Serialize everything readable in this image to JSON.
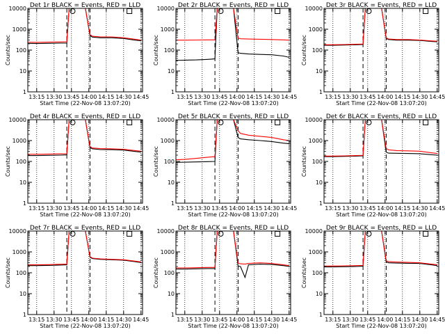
{
  "figure": {
    "background": "#ffffff",
    "ink": "#000000",
    "accent": "#ff0000"
  },
  "chart_data": [
    {
      "type": "line",
      "title": "Det 1r BLACK = Events, RED = LLD",
      "xlabel": "Start Time (22-Nov-08 13:07:20)",
      "ylabel": "Counts/sec",
      "x_ticks": [
        "13:15",
        "13:30",
        "13:45",
        "14:00",
        "14:15",
        "14:30",
        "14:45"
      ],
      "y_ticks": [
        "1",
        "10",
        "100",
        "1000",
        "10000"
      ],
      "y_scale": "log",
      "ylim": [
        1,
        10000
      ],
      "x": [
        "13:07",
        "13:15",
        "13:25",
        "13:35",
        "13:41",
        "13:43",
        "13:50",
        "13:57",
        "14:01",
        "14:03",
        "14:10",
        "14:20",
        "14:30",
        "14:40",
        "14:45"
      ],
      "series": [
        {
          "name": "BLACK = Events",
          "color": "#000000",
          "values": [
            210,
            205,
            210,
            215,
            215,
            10000,
            10000,
            10000,
            500,
            420,
            390,
            390,
            360,
            300,
            280
          ]
        },
        {
          "name": "RED = LLD",
          "color": "#ff0000",
          "values": [
            240,
            235,
            240,
            245,
            250,
            10000,
            10000,
            10000,
            560,
            460,
            430,
            430,
            390,
            330,
            300
          ]
        }
      ],
      "markers": [
        {
          "symbol": "circle",
          "x": "13:46"
        },
        {
          "symbol": "square",
          "x": "14:35"
        }
      ],
      "dashed_lines": [
        "13:41",
        "14:01"
      ],
      "grid": "dotted vertical"
    },
    {
      "type": "line",
      "title": "Det 2r BLACK = Events, RED = LLD",
      "xlabel": "Start Time (22-Nov-08 13:07:20)",
      "ylabel": "Counts/sec",
      "x_ticks": [
        "13:15",
        "13:30",
        "13:45",
        "14:00",
        "14:15",
        "14:30",
        "14:45"
      ],
      "y_ticks": [
        "1",
        "10",
        "100",
        "1000",
        "10000"
      ],
      "y_scale": "log",
      "ylim": [
        1,
        10000
      ],
      "x": [
        "13:07",
        "13:15",
        "13:25",
        "13:35",
        "13:41",
        "13:43",
        "13:50",
        "13:57",
        "14:01",
        "14:03",
        "14:10",
        "14:20",
        "14:30",
        "14:40",
        "14:45"
      ],
      "series": [
        {
          "name": "BLACK = Events",
          "color": "#000000",
          "values": [
            32,
            33,
            34,
            36,
            38,
            10000,
            10000,
            10000,
            75,
            70,
            65,
            62,
            60,
            52,
            45
          ]
        },
        {
          "name": "RED = LLD",
          "color": "#ff0000",
          "values": [
            300,
            300,
            305,
            310,
            310,
            10000,
            10000,
            10000,
            380,
            350,
            340,
            330,
            320,
            310,
            300
          ]
        }
      ],
      "markers": [
        {
          "symbol": "circle",
          "x": "13:46"
        },
        {
          "symbol": "square",
          "x": "14:35"
        }
      ],
      "dashed_lines": [
        "13:41",
        "14:01"
      ],
      "grid": "dotted vertical"
    },
    {
      "type": "line",
      "title": "Det 3r BLACK = Events, RED = LLD",
      "xlabel": "Start Time (22-Nov-08 13:07:20)",
      "ylabel": "Counts/sec",
      "x_ticks": [
        "13:15",
        "13:30",
        "13:45",
        "14:00",
        "14:15",
        "14:30",
        "14:45"
      ],
      "y_ticks": [
        "1",
        "10",
        "100",
        "1000",
        "10000"
      ],
      "y_scale": "log",
      "ylim": [
        1,
        10000
      ],
      "x": [
        "13:07",
        "13:15",
        "13:25",
        "13:35",
        "13:41",
        "13:43",
        "13:50",
        "13:57",
        "14:01",
        "14:03",
        "14:10",
        "14:20",
        "14:30",
        "14:40",
        "14:45"
      ],
      "series": [
        {
          "name": "BLACK = Events",
          "color": "#000000",
          "values": [
            170,
            170,
            175,
            180,
            185,
            10000,
            10000,
            10000,
            360,
            320,
            300,
            300,
            290,
            260,
            250
          ]
        },
        {
          "name": "RED = LLD",
          "color": "#ff0000",
          "values": [
            180,
            180,
            185,
            190,
            195,
            10000,
            10000,
            10000,
            390,
            340,
            320,
            320,
            305,
            275,
            265
          ]
        }
      ],
      "markers": [
        {
          "symbol": "circle",
          "x": "13:46"
        },
        {
          "symbol": "square",
          "x": "14:35"
        }
      ],
      "dashed_lines": [
        "13:41",
        "14:01"
      ],
      "grid": "dotted vertical"
    },
    {
      "type": "line",
      "title": "Det 4r BLACK = Events, RED = LLD",
      "xlabel": "Start Time (22-Nov-08 13:07:20)",
      "ylabel": "Counts/sec",
      "x_ticks": [
        "13:15",
        "13:30",
        "13:45",
        "14:00",
        "14:15",
        "14:30",
        "14:45"
      ],
      "y_ticks": [
        "1",
        "10",
        "100",
        "1000",
        "10000"
      ],
      "y_scale": "log",
      "ylim": [
        1,
        10000
      ],
      "x": [
        "13:07",
        "13:15",
        "13:25",
        "13:35",
        "13:41",
        "13:43",
        "13:50",
        "13:57",
        "14:01",
        "14:03",
        "14:10",
        "14:20",
        "14:30",
        "14:40",
        "14:45"
      ],
      "series": [
        {
          "name": "BLACK = Events",
          "color": "#000000",
          "values": [
            190,
            190,
            195,
            200,
            205,
            10000,
            10000,
            10000,
            460,
            400,
            370,
            365,
            350,
            300,
            280
          ]
        },
        {
          "name": "RED = LLD",
          "color": "#ff0000",
          "values": [
            220,
            220,
            225,
            230,
            235,
            10000,
            10000,
            10000,
            520,
            440,
            410,
            400,
            380,
            330,
            310
          ]
        }
      ],
      "markers": [
        {
          "symbol": "circle",
          "x": "13:46"
        },
        {
          "symbol": "square",
          "x": "14:35"
        }
      ],
      "dashed_lines": [
        "13:41",
        "14:01"
      ],
      "grid": "dotted vertical"
    },
    {
      "type": "line",
      "title": "Det 5r BLACK = Events, RED = LLD",
      "xlabel": "Start Time (22-Nov-08 13:07:20)",
      "ylabel": "Counts/sec",
      "x_ticks": [
        "13:15",
        "13:30",
        "13:45",
        "14:00",
        "14:15",
        "14:30",
        "14:45"
      ],
      "y_ticks": [
        "1",
        "10",
        "100",
        "1000",
        "10000"
      ],
      "y_scale": "log",
      "ylim": [
        1,
        10000
      ],
      "x": [
        "13:07",
        "13:15",
        "13:25",
        "13:35",
        "13:41",
        "13:43",
        "13:50",
        "13:57",
        "14:01",
        "14:03",
        "14:10",
        "14:20",
        "14:30",
        "14:40",
        "14:45"
      ],
      "series": [
        {
          "name": "BLACK = Events",
          "color": "#000000",
          "values": [
            90,
            92,
            95,
            98,
            100,
            10000,
            10000,
            10000,
            1400,
            1200,
            1100,
            1000,
            900,
            750,
            700
          ]
        },
        {
          "name": "RED = LLD",
          "color": "#ff0000",
          "values": [
            120,
            125,
            140,
            160,
            170,
            10000,
            10000,
            10000,
            3000,
            2200,
            1800,
            1600,
            1400,
            1100,
            1000
          ]
        }
      ],
      "markers": [
        {
          "symbol": "circle",
          "x": "13:46"
        },
        {
          "symbol": "square",
          "x": "14:35"
        }
      ],
      "dashed_lines": [
        "13:41",
        "14:01"
      ],
      "grid": "dotted vertical"
    },
    {
      "type": "line",
      "title": "Det 6r BLACK = Events, RED = LLD",
      "xlabel": "Start Time (22-Nov-08 13:07:20)",
      "ylabel": "Counts/sec",
      "x_ticks": [
        "13:15",
        "13:30",
        "13:45",
        "14:00",
        "14:15",
        "14:30",
        "14:45"
      ],
      "y_ticks": [
        "1",
        "10",
        "100",
        "1000",
        "10000"
      ],
      "y_scale": "log",
      "ylim": [
        1,
        10000
      ],
      "x": [
        "13:07",
        "13:15",
        "13:25",
        "13:35",
        "13:41",
        "13:43",
        "13:50",
        "13:57",
        "14:01",
        "14:03",
        "14:10",
        "14:20",
        "14:30",
        "14:40",
        "14:45"
      ],
      "series": [
        {
          "name": "BLACK = Events",
          "color": "#000000",
          "values": [
            170,
            170,
            175,
            180,
            185,
            10000,
            10000,
            10000,
            280,
            250,
            245,
            240,
            235,
            210,
            200
          ]
        },
        {
          "name": "RED = LLD",
          "color": "#ff0000",
          "values": [
            180,
            180,
            185,
            190,
            195,
            10000,
            10000,
            10000,
            420,
            360,
            330,
            320,
            310,
            260,
            240
          ]
        }
      ],
      "markers": [
        {
          "symbol": "circle",
          "x": "13:46"
        },
        {
          "symbol": "square",
          "x": "14:35"
        }
      ],
      "dashed_lines": [
        "13:41",
        "14:01"
      ],
      "grid": "dotted vertical"
    },
    {
      "type": "line",
      "title": "Det 7r BLACK = Events, RED = LLD",
      "xlabel": "Start Time (22-Nov-08 13:07:20)",
      "ylabel": "Counts/sec",
      "x_ticks": [
        "13:15",
        "13:30",
        "13:45",
        "14:00",
        "14:15",
        "14:30",
        "14:45"
      ],
      "y_ticks": [
        "1",
        "10",
        "100",
        "1000",
        "10000"
      ],
      "y_scale": "log",
      "ylim": [
        1,
        10000
      ],
      "x": [
        "13:07",
        "13:15",
        "13:25",
        "13:35",
        "13:41",
        "13:43",
        "13:50",
        "13:57",
        "14:01",
        "14:03",
        "14:10",
        "14:20",
        "14:30",
        "14:40",
        "14:45"
      ],
      "series": [
        {
          "name": "BLACK = Events",
          "color": "#000000",
          "values": [
            220,
            220,
            225,
            235,
            240,
            10000,
            10000,
            10000,
            560,
            480,
            440,
            420,
            400,
            340,
            310
          ]
        },
        {
          "name": "RED = LLD",
          "color": "#ff0000",
          "values": [
            240,
            240,
            245,
            255,
            260,
            10000,
            10000,
            10000,
            600,
            500,
            460,
            440,
            420,
            360,
            330
          ]
        }
      ],
      "markers": [
        {
          "symbol": "circle",
          "x": "13:46"
        },
        {
          "symbol": "square",
          "x": "14:35"
        }
      ],
      "dashed_lines": [
        "13:41",
        "14:01"
      ],
      "grid": "dotted vertical"
    },
    {
      "type": "line",
      "title": "Det 8r BLACK = Events, RED = LLD",
      "xlabel": "Start Time (22-Nov-08 13:07:20)",
      "ylabel": "Counts/sec",
      "x_ticks": [
        "13:15",
        "13:30",
        "13:45",
        "14:00",
        "14:15",
        "14:30",
        "14:45"
      ],
      "y_ticks": [
        "1",
        "10",
        "100",
        "1000",
        "10000"
      ],
      "y_scale": "log",
      "ylim": [
        1,
        10000
      ],
      "x": [
        "13:07",
        "13:15",
        "13:25",
        "13:35",
        "13:41",
        "13:43",
        "13:50",
        "13:57",
        "14:01",
        "14:03",
        "14:07",
        "14:10",
        "14:20",
        "14:30",
        "14:40",
        "14:45"
      ],
      "series": [
        {
          "name": "BLACK = Events",
          "color": "#000000",
          "values": [
            150,
            150,
            155,
            160,
            160,
            10000,
            10000,
            10000,
            210,
            200,
            60,
            240,
            260,
            250,
            220,
            200
          ]
        },
        {
          "name": "RED = LLD",
          "color": "#ff0000",
          "values": [
            170,
            170,
            175,
            180,
            180,
            10000,
            10000,
            10000,
            290,
            270,
            260,
            280,
            300,
            280,
            240,
            220
          ]
        }
      ],
      "markers": [
        {
          "symbol": "circle",
          "x": "13:46"
        },
        {
          "symbol": "square",
          "x": "14:35"
        }
      ],
      "dashed_lines": [
        "13:41",
        "14:01"
      ],
      "grid": "dotted vertical"
    },
    {
      "type": "line",
      "title": "Det 9r BLACK = Events, RED = LLD",
      "xlabel": "Start Time (22-Nov-08 13:07:20)",
      "ylabel": "Counts/sec",
      "x_ticks": [
        "13:15",
        "13:30",
        "13:45",
        "14:00",
        "14:15",
        "14:30",
        "14:45"
      ],
      "y_ticks": [
        "1",
        "10",
        "100",
        "1000",
        "10000"
      ],
      "y_scale": "log",
      "ylim": [
        1,
        10000
      ],
      "x": [
        "13:07",
        "13:15",
        "13:25",
        "13:35",
        "13:41",
        "13:43",
        "13:50",
        "13:57",
        "14:01",
        "14:03",
        "14:10",
        "14:20",
        "14:30",
        "14:40",
        "14:45"
      ],
      "series": [
        {
          "name": "BLACK = Events",
          "color": "#000000",
          "values": [
            190,
            190,
            195,
            200,
            205,
            10000,
            10000,
            10000,
            330,
            300,
            290,
            285,
            280,
            240,
            220
          ]
        },
        {
          "name": "RED = LLD",
          "color": "#ff0000",
          "values": [
            210,
            210,
            215,
            220,
            225,
            10000,
            10000,
            10000,
            380,
            340,
            325,
            315,
            300,
            260,
            240
          ]
        }
      ],
      "markers": [
        {
          "symbol": "circle",
          "x": "13:46"
        },
        {
          "symbol": "square",
          "x": "14:35"
        }
      ],
      "dashed_lines": [
        "13:41",
        "14:01"
      ],
      "grid": "dotted vertical"
    }
  ]
}
